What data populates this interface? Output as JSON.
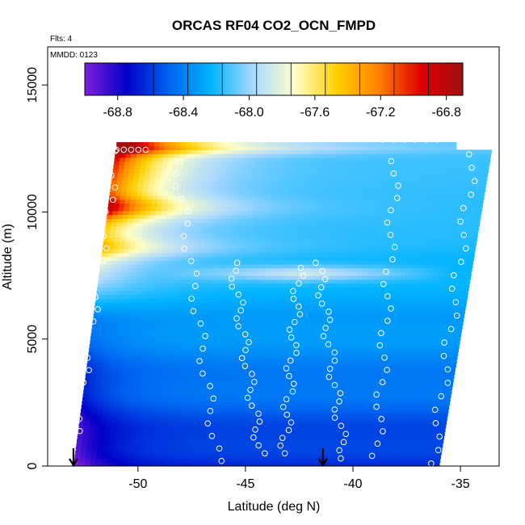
{
  "chart_data": {
    "type": "heatmap",
    "title": "ORCAS RF04 CO2_OCN_FMPD",
    "flts_label": "Flts: 4",
    "mmdd_label": "MMDD: 0123",
    "xlabel": "Latitude (deg N)",
    "ylabel": "Altitude (m)",
    "xlim": [
      -54.2,
      -33.2
    ],
    "ylim": [
      0,
      16500
    ],
    "x_ticks": [
      -50,
      -45,
      -40,
      -35
    ],
    "x_tick_labels": [
      "-50",
      "-45",
      "-40",
      "-35"
    ],
    "y_ticks": [
      0,
      5000,
      10000,
      15000
    ],
    "y_tick_labels": [
      "0",
      "5000",
      "10000",
      "15000"
    ],
    "colorbar": {
      "range": [
        -69.0,
        -66.7
      ],
      "ticks": [
        -68.8,
        -68.4,
        -68.0,
        -67.6,
        -67.2,
        -66.8
      ],
      "tick_labels": [
        "-68.8",
        "-68.4",
        "-68.0",
        "-67.6",
        "-67.2",
        "-66.8"
      ],
      "colors": [
        "#7f1fdc",
        "#0000c8",
        "#0064f0",
        "#00b4ff",
        "#a8d8ff",
        "#ffffc8",
        "#ffd000",
        "#ff8000",
        "#e00000",
        "#a01010"
      ]
    },
    "field_extent": {
      "lat_west_bottom": -53.0,
      "lat_west_top": -51.0,
      "lat_east_bottom": -36.0,
      "lat_east_top": -33.5,
      "alt_bottom": 0,
      "alt_top": 12700
    },
    "arrow_markers": [
      {
        "lat": -53.0,
        "label": "downward arrow"
      },
      {
        "lat": -41.4,
        "label": "downward arrow"
      }
    ],
    "profiles": [
      {
        "name": "profile-1",
        "lat_bottom": -53.0,
        "lat_top": -51.0,
        "alt_bottom": 900,
        "alt_top": 12400
      },
      {
        "name": "profile-2",
        "lat_bottom": -46.3,
        "lat_top": -48.2,
        "alt_bottom": 200,
        "alt_top": 12000
      },
      {
        "name": "profile-3",
        "lat_bottom": -44.3,
        "lat_top": -45.6,
        "alt_bottom": 500,
        "alt_top": 8000
      },
      {
        "name": "profile-4",
        "lat_bottom": -43.2,
        "lat_top": -42.5,
        "alt_bottom": 500,
        "alt_top": 7800
      },
      {
        "name": "profile-5",
        "lat_bottom": -40.4,
        "lat_top": -41.6,
        "alt_bottom": 300,
        "alt_top": 8000
      },
      {
        "name": "profile-6",
        "lat_bottom": -38.9,
        "lat_top": -38.0,
        "alt_bottom": 400,
        "alt_top": 12000
      },
      {
        "name": "profile-7",
        "lat_bottom": -36.3,
        "lat_top": -34.3,
        "alt_bottom": 100,
        "alt_top": 12800
      }
    ]
  }
}
